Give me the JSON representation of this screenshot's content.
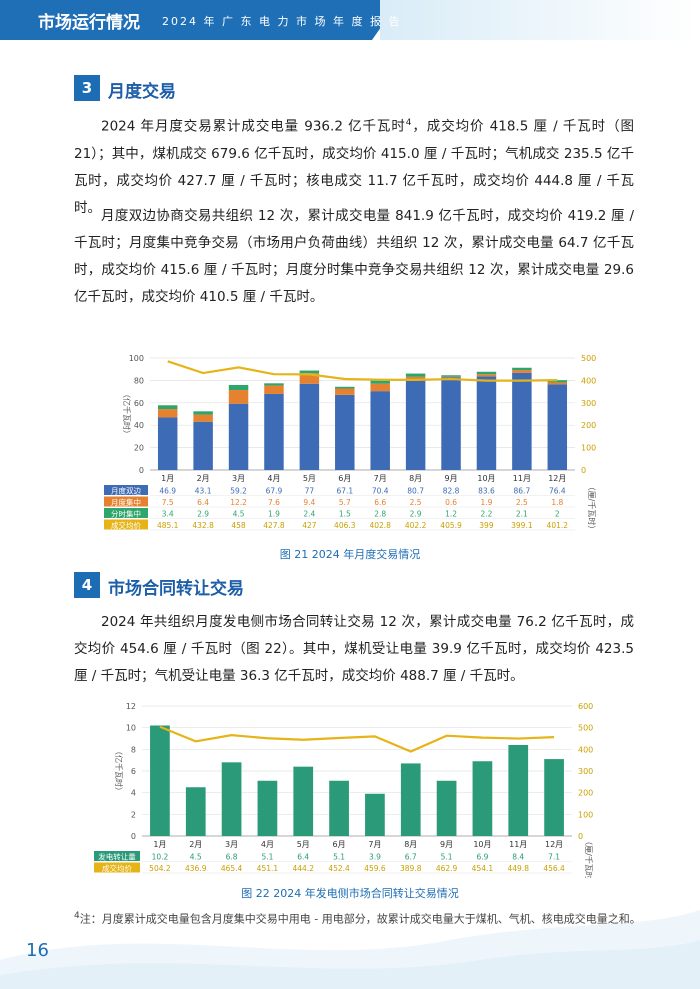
{
  "header": {
    "section": "市场运行情况",
    "report": "2024 年 广 东 电 力 市 场 年 度 报 告"
  },
  "section3": {
    "number": "3",
    "title": "月度交易",
    "para1_pre": "2024 年月度交易累计成交电量 936.2 亿千瓦时",
    "para1_sup": "4",
    "para1_post": "，成交均价 418.5 厘 / 千瓦时（图 21）；其中，煤机成交 679.6 亿千瓦时，成交均价 415.0 厘 / 千瓦时；气机成交 235.5 亿千瓦时，成交均价 427.7 厘 / 千瓦时；核电成交 11.7 亿千瓦时，成交均价 444.8 厘 / 千瓦时。",
    "para2": "月度双边协商交易共组织 12 次，累计成交电量 841.9 亿千瓦时，成交均价 419.2 厘 / 千瓦时；月度集中竞争交易（市场用户负荷曲线）共组织 12 次，累计成交电量 64.7 亿千瓦时，成交均价 415.6 厘 / 千瓦时；月度分时集中竞争交易共组织 12 次，累计成交电量 29.6 亿千瓦时，成交均价 410.5 厘 / 千瓦时。"
  },
  "section4": {
    "number": "4",
    "title": "市场合同转让交易",
    "para1": "2024 年共组织月度发电侧市场合同转让交易 12 次，累计成交电量 76.2 亿千瓦时，成交均价 454.6 厘 / 千瓦时（图 22）。其中，煤机受让电量 39.9 亿千瓦时，成交均价 423.5 厘 / 千瓦时；气机受让电量 36.3 亿千瓦时，成交均价 488.7 厘 / 千瓦时。"
  },
  "chart_data": [
    {
      "type": "bar",
      "title": "图 21  2024 年月度交易情况",
      "categories": [
        "1月",
        "2月",
        "3月",
        "4月",
        "5月",
        "6月",
        "7月",
        "8月",
        "9月",
        "10月",
        "11月",
        "12月"
      ],
      "series": [
        {
          "name": "月度双边",
          "color": "#3e6bb5",
          "stack": true,
          "values": [
            "46.9",
            "43.1",
            "59.2",
            "67.9",
            "77",
            "67.1",
            "70.4",
            "80.7",
            "82.8",
            "83.6",
            "86.7",
            "76.4"
          ]
        },
        {
          "name": "月度集中",
          "color": "#e6822f",
          "stack": true,
          "values": [
            "7.5",
            "6.4",
            "12.2",
            "7.6",
            "9.4",
            "5.7",
            "6.6",
            "2.5",
            "0.6",
            "1.9",
            "2.5",
            "1.8"
          ]
        },
        {
          "name": "分时集中",
          "color": "#2fa56e",
          "stack": true,
          "values": [
            "3.4",
            "2.9",
            "4.5",
            "1.9",
            "2.4",
            "1.5",
            "2.8",
            "2.9",
            "1.2",
            "2.2",
            "2.1",
            "2"
          ]
        },
        {
          "name": "成交均价",
          "color": "#e6b418",
          "axis": "right",
          "type": "line",
          "values": [
            "485.1",
            "432.8",
            "458",
            "427.8",
            "427",
            "406.3",
            "402.8",
            "402.2",
            "405.9",
            "399",
            "399.1",
            "401.2"
          ]
        }
      ],
      "ylabel_left": "亿千瓦时",
      "ylabel_right": "厘/千瓦时",
      "ylim_left": [
        0,
        100
      ],
      "yticks_left": [
        "0",
        "20",
        "40",
        "60",
        "80",
        "100"
      ],
      "ylim_right": [
        0,
        500
      ],
      "yticks_right": [
        "0",
        "100",
        "200",
        "300",
        "400",
        "500"
      ]
    },
    {
      "type": "bar",
      "title": "图 22  2024 年发电侧市场合同转让交易情况",
      "categories": [
        "1月",
        "2月",
        "3月",
        "4月",
        "5月",
        "6月",
        "7月",
        "8月",
        "9月",
        "10月",
        "11月",
        "12月"
      ],
      "series": [
        {
          "name": "发电转让量",
          "color": "#2a9a78",
          "values": [
            "10.2",
            "4.5",
            "6.8",
            "5.1",
            "6.4",
            "5.1",
            "3.9",
            "6.7",
            "5.1",
            "6.9",
            "8.4",
            "7.1"
          ]
        },
        {
          "name": "成交均价",
          "color": "#e6b418",
          "axis": "right",
          "type": "line",
          "values": [
            "504.2",
            "436.9",
            "465.4",
            "451.1",
            "444.2",
            "452.4",
            "459.6",
            "389.8",
            "462.9",
            "454.1",
            "449.8",
            "456.4"
          ]
        }
      ],
      "ylabel_left": "亿千瓦时",
      "ylabel_right": "厘/千瓦时",
      "ylim_left": [
        0,
        12
      ],
      "yticks_left": [
        "0",
        "2",
        "4",
        "6",
        "8",
        "10",
        "12"
      ],
      "ylim_right": [
        0,
        600
      ],
      "yticks_right": [
        "0",
        "100",
        "200",
        "300",
        "400",
        "500",
        "600"
      ]
    }
  ],
  "footnote": {
    "sup": "4",
    "text": "注：月度累计成交电量包含月度集中交易中用电 - 用电部分，故累计成交电量大于煤机、气机、核电成交电量之和。"
  },
  "page_number": "16"
}
